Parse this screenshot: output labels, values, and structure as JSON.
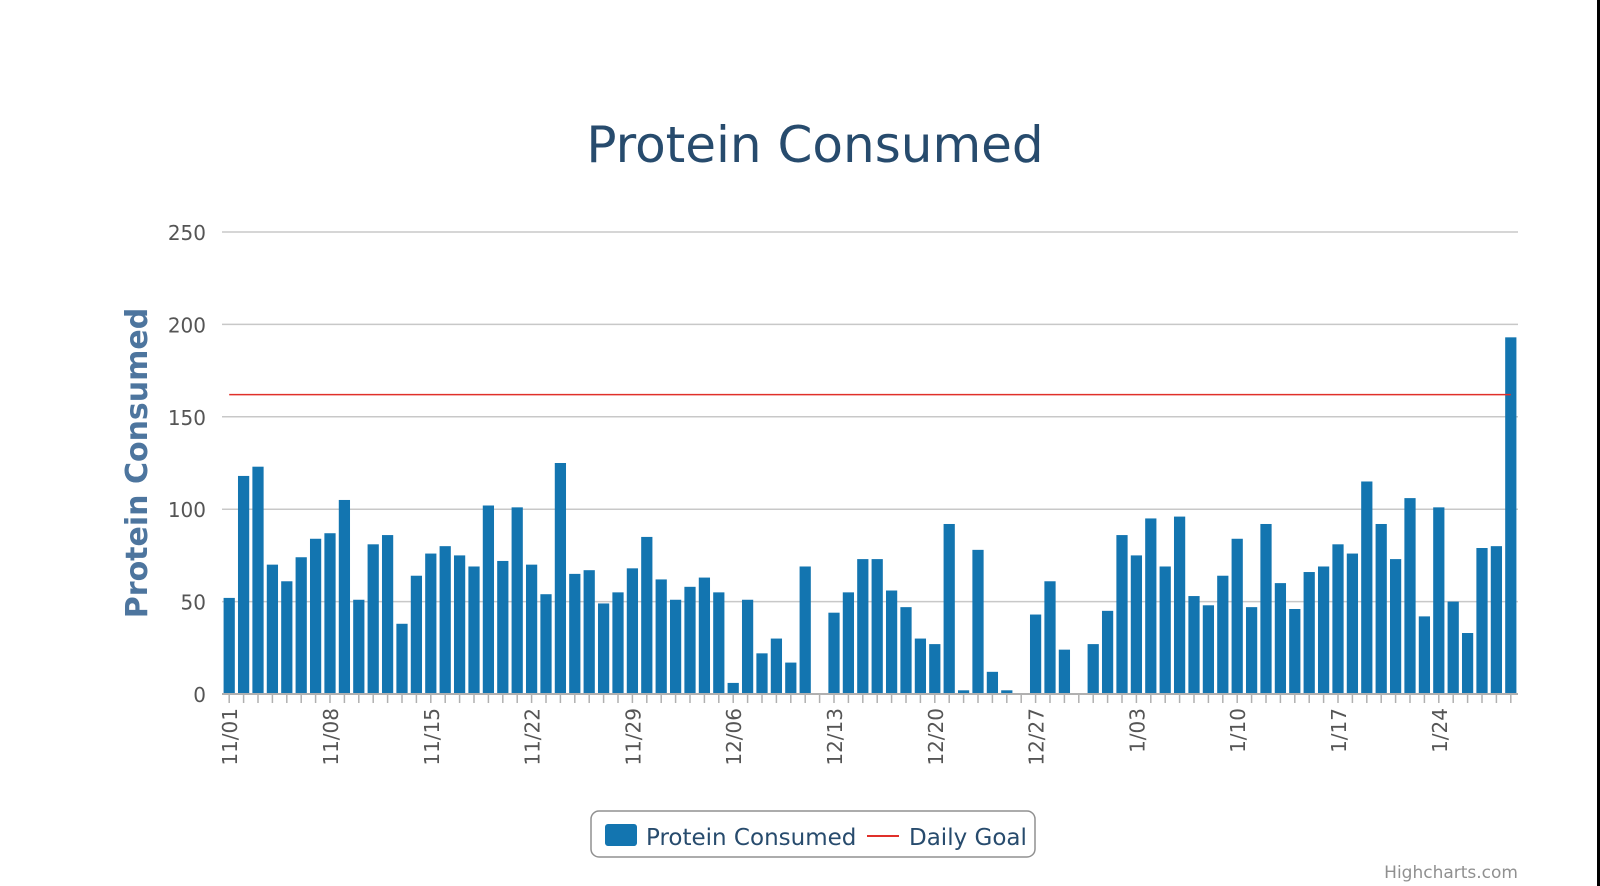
{
  "chart_data": {
    "type": "bar",
    "title": "Protein Consumed",
    "ylabel": "Protein Consumed",
    "ylim": [
      0,
      250
    ],
    "yticks": [
      0,
      50,
      100,
      150,
      200,
      250
    ],
    "xtick_labels": [
      "11/01",
      "11/08",
      "11/15",
      "11/22",
      "11/29",
      "12/06",
      "12/13",
      "12/20",
      "12/27",
      "1/03",
      "1/10",
      "1/17",
      "1/24"
    ],
    "categories": [
      "11/01",
      "11/02",
      "11/03",
      "11/04",
      "11/05",
      "11/06",
      "11/07",
      "11/08",
      "11/09",
      "11/10",
      "11/11",
      "11/12",
      "11/13",
      "11/14",
      "11/15",
      "11/16",
      "11/17",
      "11/18",
      "11/19",
      "11/20",
      "11/21",
      "11/22",
      "11/23",
      "11/24",
      "11/25",
      "11/26",
      "11/27",
      "11/28",
      "11/29",
      "11/30",
      "12/01",
      "12/02",
      "12/03",
      "12/04",
      "12/05",
      "12/06",
      "12/07",
      "12/08",
      "12/09",
      "12/10",
      "12/11",
      "12/12",
      "12/13",
      "12/14",
      "12/15",
      "12/16",
      "12/17",
      "12/18",
      "12/19",
      "12/20",
      "12/21",
      "12/22",
      "12/23",
      "12/24",
      "12/25",
      "12/26",
      "12/27",
      "12/28",
      "12/29",
      "12/30",
      "12/31",
      "1/01",
      "1/02",
      "1/03",
      "1/04",
      "1/05",
      "1/06",
      "1/07",
      "1/08",
      "1/09",
      "1/10",
      "1/11",
      "1/12",
      "1/13",
      "1/14",
      "1/15",
      "1/16",
      "1/17",
      "1/18",
      "1/19",
      "1/20",
      "1/21",
      "1/22",
      "1/23",
      "1/24",
      "1/25",
      "1/26",
      "1/27",
      "1/28",
      "1/29"
    ],
    "series": [
      {
        "name": "Protein Consumed",
        "type": "bar",
        "color": "#1375b0",
        "values": [
          52,
          118,
          123,
          70,
          61,
          74,
          84,
          87,
          105,
          51,
          81,
          86,
          38,
          64,
          76,
          80,
          75,
          69,
          102,
          72,
          101,
          70,
          54,
          125,
          65,
          67,
          49,
          55,
          68,
          85,
          62,
          51,
          58,
          63,
          55,
          6,
          51,
          22,
          30,
          17,
          69,
          0,
          44,
          55,
          73,
          73,
          56,
          47,
          30,
          27,
          92,
          2,
          78,
          12,
          2,
          0,
          43,
          61,
          24,
          0,
          27,
          45,
          86,
          75,
          95,
          69,
          96,
          53,
          48,
          64,
          84,
          47,
          92,
          60,
          46,
          66,
          69,
          81,
          76,
          115,
          92,
          73,
          106,
          42,
          101,
          50,
          33,
          79,
          80,
          193
        ]
      },
      {
        "name": "Daily Goal",
        "type": "line",
        "color": "#e0302a",
        "value": 162
      }
    ],
    "grid": true,
    "legend_position": "bottom-center"
  },
  "credits": "Highcharts.com",
  "colors": {
    "title": "#274b6d",
    "axis_title": "#4d759e",
    "grid": "#c8c8c8",
    "axis_text": "#555555",
    "credits": "#909090"
  }
}
